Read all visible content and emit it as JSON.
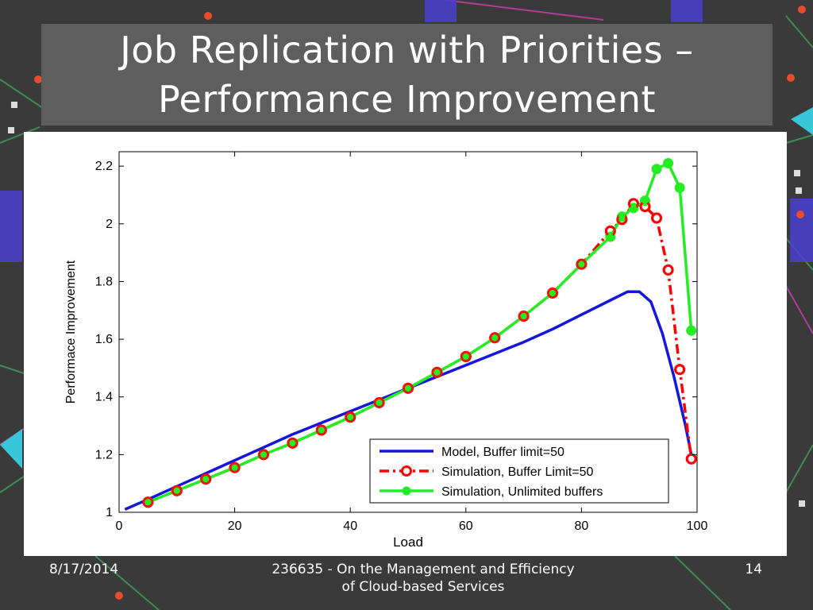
{
  "slide": {
    "title_line1": "Job Replication with Priorities –",
    "title_line2": "Performance Improvement",
    "footer_date": "8/17/2014",
    "footer_center_line1": "236635 - On the Management and Efficiency",
    "footer_center_line2": "of Cloud-based Services",
    "footer_page": "14"
  },
  "colors": {
    "background": "#3a3a3a",
    "title_box": "#5e5e5e",
    "model": "#1515e0",
    "sim_buffer": "#ff0000",
    "sim_unlimited": "#22ee22"
  },
  "chart_data": {
    "type": "line",
    "xlabel": "Load",
    "ylabel": "Performace Improvement",
    "xlim": [
      0,
      100
    ],
    "ylim": [
      1,
      2.25
    ],
    "x_ticks": [
      0,
      20,
      40,
      60,
      80,
      100
    ],
    "x_tick_labels": [
      "0",
      "20",
      "40",
      "60",
      "80",
      "100"
    ],
    "y_ticks": [
      1,
      1.2,
      1.4,
      1.6,
      1.8,
      2,
      2.2
    ],
    "y_tick_labels": [
      "1",
      "1.2",
      "1.4",
      "1.6",
      "1.8",
      "2",
      "2.2"
    ],
    "grid": false,
    "legend_position": "bottom-right",
    "series": [
      {
        "name": "Model, Buffer limit=50",
        "style": "solid",
        "x": [
          1,
          5,
          10,
          15,
          20,
          25,
          30,
          35,
          40,
          45,
          50,
          55,
          60,
          65,
          70,
          75,
          80,
          85,
          88,
          90,
          92,
          94,
          96,
          98,
          99
        ],
        "y": [
          1.01,
          1.045,
          1.09,
          1.135,
          1.18,
          1.225,
          1.27,
          1.31,
          1.35,
          1.39,
          1.43,
          1.47,
          1.51,
          1.55,
          1.59,
          1.635,
          1.685,
          1.735,
          1.765,
          1.765,
          1.73,
          1.62,
          1.47,
          1.3,
          1.2
        ]
      },
      {
        "name": "Simulation, Buffer Limit=50",
        "style": "dash-dot-marker-circle",
        "x": [
          5,
          10,
          15,
          20,
          25,
          30,
          35,
          40,
          45,
          50,
          55,
          60,
          65,
          70,
          75,
          80,
          85,
          87,
          89,
          91,
          93,
          95,
          97,
          99
        ],
        "y": [
          1.035,
          1.075,
          1.115,
          1.155,
          1.2,
          1.24,
          1.285,
          1.33,
          1.38,
          1.43,
          1.485,
          1.54,
          1.605,
          1.68,
          1.76,
          1.86,
          1.975,
          2.015,
          2.07,
          2.06,
          2.02,
          1.84,
          1.495,
          1.185
        ]
      },
      {
        "name": "Simulation, Unlimited buffers",
        "style": "solid-marker-dot",
        "x": [
          5,
          10,
          15,
          20,
          25,
          30,
          35,
          40,
          45,
          50,
          55,
          60,
          65,
          70,
          75,
          80,
          85,
          87,
          89,
          91,
          93,
          95,
          97,
          99
        ],
        "y": [
          1.035,
          1.075,
          1.115,
          1.155,
          1.2,
          1.24,
          1.285,
          1.33,
          1.38,
          1.43,
          1.485,
          1.54,
          1.605,
          1.68,
          1.76,
          1.86,
          1.955,
          2.025,
          2.055,
          2.08,
          2.19,
          2.21,
          2.125,
          1.63
        ]
      }
    ]
  }
}
